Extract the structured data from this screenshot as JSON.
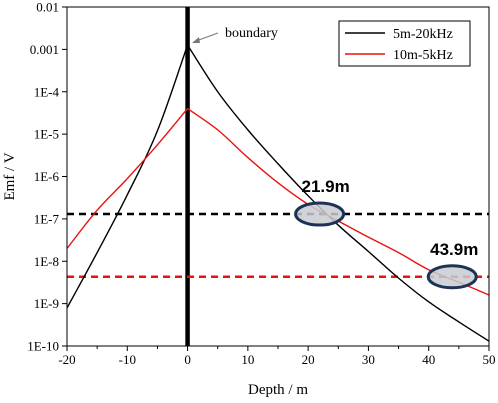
{
  "chart_data": {
    "type": "line",
    "xlabel": "Depth / m",
    "ylabel": "Emf / V",
    "xlim": [
      -20,
      50
    ],
    "ylim_log10": [
      -10,
      -2
    ],
    "y_scale": "log",
    "x_ticks": [
      -20,
      -10,
      0,
      10,
      20,
      30,
      40,
      50
    ],
    "x_tick_labels": [
      "-20",
      "-10",
      "0",
      "10",
      "20",
      "30",
      "40",
      "50"
    ],
    "y_ticks_log10": [
      -2,
      -3,
      -4,
      -5,
      -6,
      -7,
      -8,
      -9,
      -10
    ],
    "y_tick_labels": [
      "0.01",
      "0.001",
      "1E-4",
      "1E-5",
      "1E-6",
      "1E-7",
      "1E-8",
      "1E-9",
      "1E-10"
    ],
    "grid": false,
    "legend_position": "top-right",
    "series": [
      {
        "name": "5m-20kHz",
        "color": "#000000",
        "x": [
          -20,
          -15,
          -10,
          -5,
          0,
          5,
          10,
          15,
          20,
          25,
          30,
          35,
          40,
          45,
          50
        ],
        "y": [
          7.9e-10,
          1.6e-08,
          3.7e-07,
          1.2e-05,
          0.00126,
          0.0001,
          1.26e-05,
          2e-06,
          3.5e-07,
          7.1e-08,
          1.7e-08,
          4e-09,
          1.1e-09,
          3.7e-10,
          1.3e-10
        ]
      },
      {
        "name": "10m-5kHz",
        "color": "#e8130f",
        "x": [
          -20,
          -15,
          -10,
          -5,
          0,
          5,
          10,
          15,
          20,
          25,
          30,
          35,
          40,
          45,
          50
        ],
        "y": [
          2e-08,
          1.6e-07,
          8.9e-07,
          5.6e-06,
          4e-05,
          1.26e-05,
          2.8e-06,
          7.1e-07,
          2.2e-07,
          8.9e-08,
          3.7e-08,
          1.6e-08,
          6.3e-09,
          3.2e-09,
          1.6e-09
        ]
      }
    ],
    "reference_lines": [
      {
        "orientation": "vertical",
        "x": 0,
        "color": "#000000",
        "style": "solid-thick"
      },
      {
        "orientation": "horizontal",
        "y": 1.3e-07,
        "color": "#000000",
        "style": "dashed"
      },
      {
        "orientation": "horizontal",
        "y": 4.3e-09,
        "color": "#e8130f",
        "style": "dashed"
      }
    ],
    "markers": [
      {
        "x": 21.9,
        "y": 1.3e-07,
        "label": "21.9m"
      },
      {
        "x": 43.9,
        "y": 4.3e-09,
        "label": "43.9m"
      }
    ],
    "annotations": [
      {
        "text": "boundary",
        "x": 1.5,
        "y": 0.002
      }
    ]
  },
  "colors": {
    "axis": "#000000",
    "red": "#e8130f",
    "ellipse_fill": "#c8ccd2",
    "ellipse_stroke": "#1c3354"
  }
}
